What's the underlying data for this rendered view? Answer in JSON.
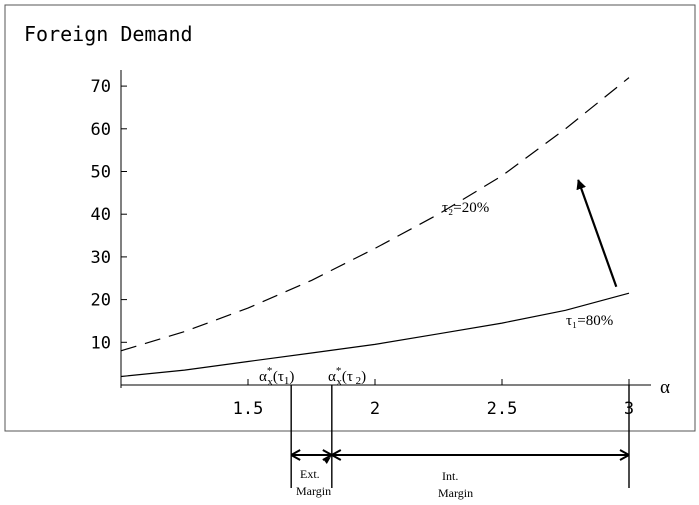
{
  "chart_data": {
    "type": "line",
    "title": "Foreign Demand",
    "xlabel": "α",
    "ylabel": "",
    "xlim": [
      1,
      3
    ],
    "ylim": [
      0,
      72
    ],
    "x_ticks": [
      {
        "value": 1.5,
        "label": "1.5"
      },
      {
        "value": 2,
        "label": "2"
      },
      {
        "value": 2.5,
        "label": "2.5"
      },
      {
        "value": 3,
        "label": "3"
      }
    ],
    "y_ticks": [
      {
        "value": 10,
        "label": "10"
      },
      {
        "value": 20,
        "label": "20"
      },
      {
        "value": 30,
        "label": "30"
      },
      {
        "value": 40,
        "label": "40"
      },
      {
        "value": 50,
        "label": "50"
      },
      {
        "value": 60,
        "label": "60"
      },
      {
        "value": 70,
        "label": "70"
      }
    ],
    "x": [
      1,
      1.25,
      1.5,
      1.75,
      2,
      2.25,
      2.5,
      2.75,
      3
    ],
    "series": [
      {
        "name": "τ₂=20%",
        "style": "dashed",
        "values": [
          8,
          12.5,
          18,
          24.5,
          32,
          40,
          49,
          60,
          72
        ]
      },
      {
        "name": "τ₁=80%",
        "style": "solid",
        "values": [
          2,
          3.5,
          5.5,
          7.5,
          9.5,
          12,
          14.5,
          17.5,
          21.5
        ]
      }
    ],
    "annotations": {
      "threshold_1": {
        "x": 1.67,
        "main": "α",
        "sup": "*",
        "sub": "x",
        "arg": "(τ",
        "arg_sub": "1",
        "close": ")"
      },
      "threshold_2": {
        "x": 1.83,
        "main": "α",
        "sup": "*",
        "sub": "x",
        "arg": "(τ",
        "arg_sub": " 2",
        "close": ")"
      },
      "arrow": {
        "from": [
          2.95,
          23
        ],
        "to": [
          2.8,
          48
        ]
      },
      "ext_margin": {
        "line1": "Ext.",
        "line2": "Margin",
        "from": 1.67,
        "to": 1.83
      },
      "int_margin": {
        "line1": "Int.",
        "line2": "Margin",
        "from": 1.83,
        "to": 3
      }
    },
    "grid": false,
    "legend": "none"
  },
  "colors": {
    "line": "#000000",
    "background": "#ffffff"
  }
}
